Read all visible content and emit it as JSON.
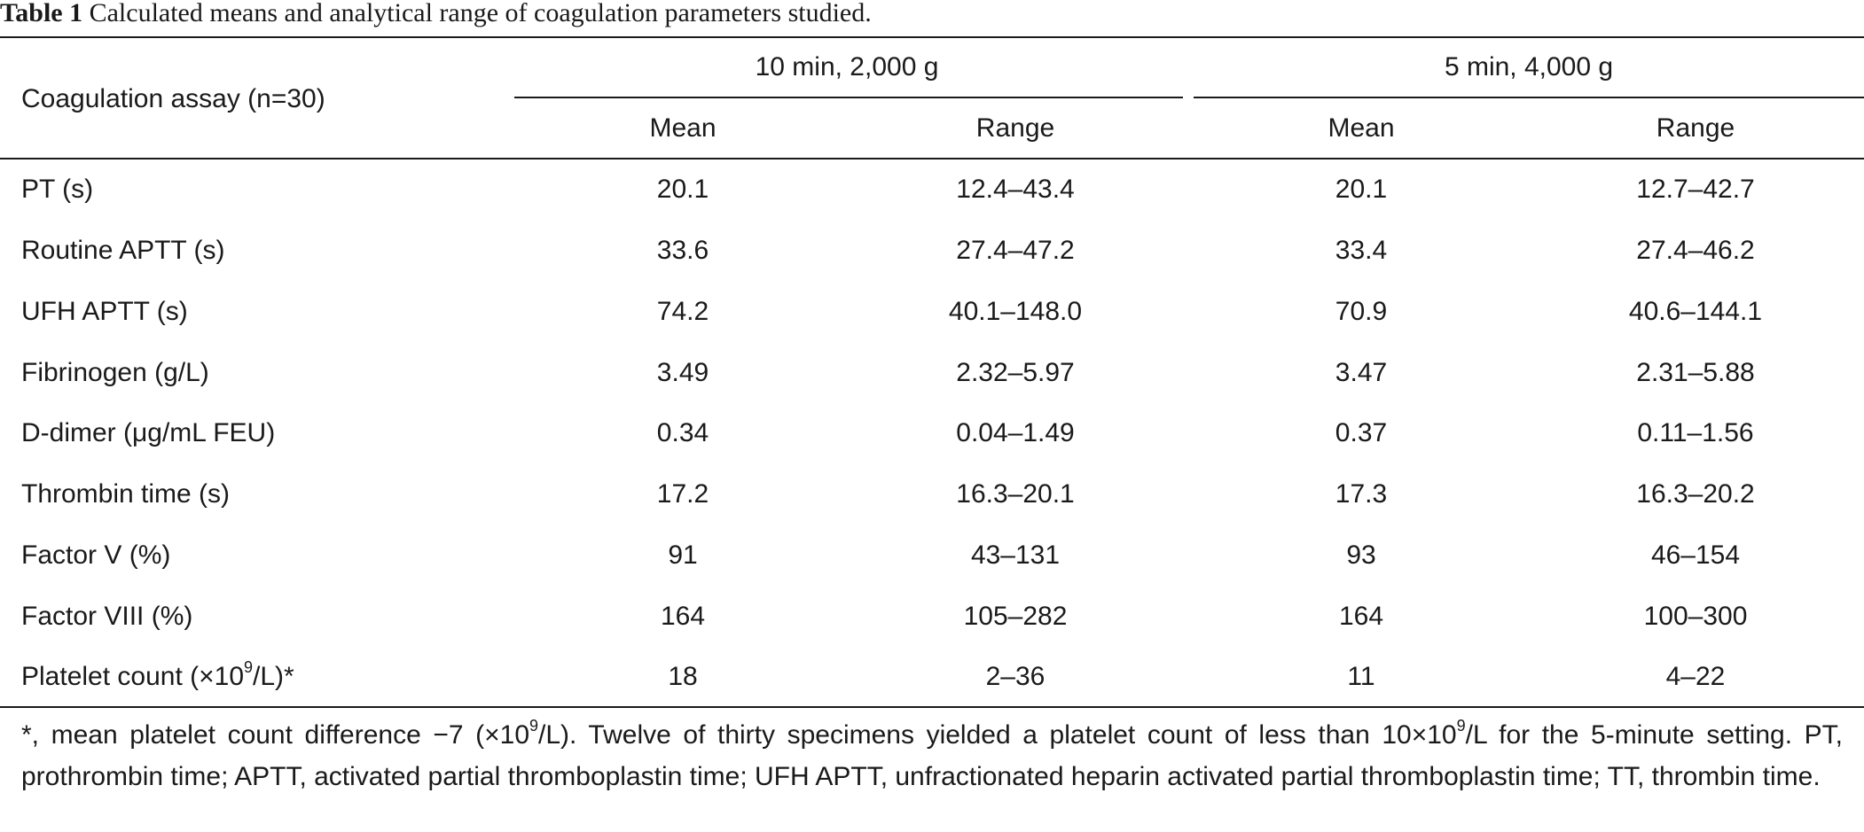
{
  "caption": {
    "label": "Table 1",
    "text": "Calculated means and analytical range of coagulation parameters studied."
  },
  "table": {
    "row_header": "Coagulation assay (n=30)",
    "groups": [
      {
        "label": "10 min, 2,000 g",
        "subheaders": [
          "Mean",
          "Range"
        ]
      },
      {
        "label": "5 min, 4,000 g",
        "subheaders": [
          "Mean",
          "Range"
        ]
      }
    ],
    "rows": [
      {
        "assay": "PT (s)",
        "values": [
          "20.1",
          "12.4–43.4",
          "20.1",
          "12.7–42.7"
        ]
      },
      {
        "assay": "Routine APTT (s)",
        "values": [
          "33.6",
          "27.4–47.2",
          "33.4",
          "27.4–46.2"
        ]
      },
      {
        "assay": "UFH APTT (s)",
        "values": [
          "74.2",
          "40.1–148.0",
          "70.9",
          "40.6–144.1"
        ]
      },
      {
        "assay": "Fibrinogen (g/L)",
        "values": [
          "3.49",
          "2.32–5.97",
          "3.47",
          "2.31–5.88"
        ]
      },
      {
        "assay": "D-dimer (μg/mL FEU)",
        "values": [
          "0.34",
          "0.04–1.49",
          "0.37",
          "0.11–1.56"
        ]
      },
      {
        "assay": "Thrombin time (s)",
        "values": [
          "17.2",
          "16.3–20.1",
          "17.3",
          "16.3–20.2"
        ]
      },
      {
        "assay": "Factor V (%)",
        "values": [
          "91",
          "43–131",
          "93",
          "46–154"
        ]
      },
      {
        "assay": "Factor VIII (%)",
        "values": [
          "164",
          "105–282",
          "164",
          "100–300"
        ]
      },
      {
        "assay_pre": "Platelet count (×10",
        "assay_sup": "9",
        "assay_post": "/L)*",
        "values": [
          "18",
          "2–36",
          "11",
          "4–22"
        ]
      }
    ]
  },
  "footnote": {
    "part1": "*, mean platelet count difference −7 (×10",
    "sup1": "9",
    "part2": "/L). Twelve of thirty specimens yielded a platelet count of less than 10×10",
    "sup2": "9",
    "part3": "/L for the 5-minute setting. PT, prothrombin time; APTT, activated partial thromboplastin time; UFH APTT, unfractionated heparin activated partial thromboplastin time; TT, thrombin time."
  }
}
